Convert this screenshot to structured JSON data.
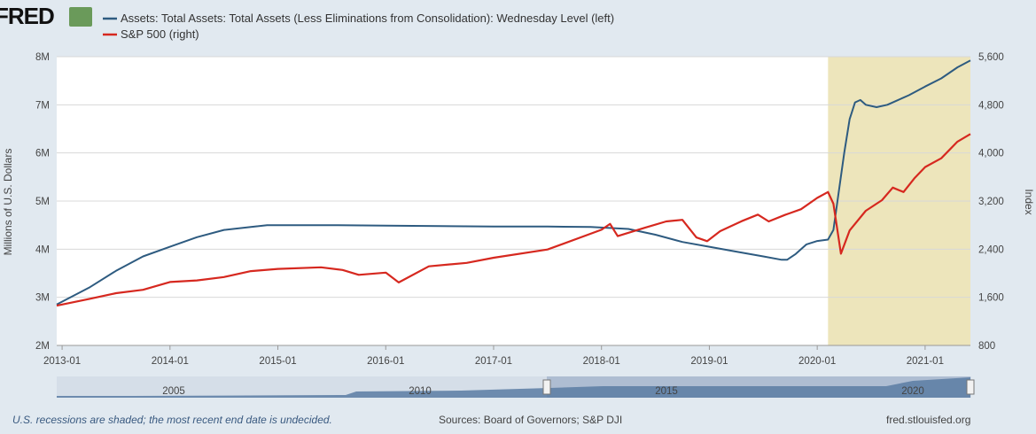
{
  "logo": {
    "text": "FRED"
  },
  "legend": [
    {
      "label": "Assets: Total Assets: Total Assets (Less Eliminations from Consolidation): Wednesday Level (left)",
      "color": "#2e5b80"
    },
    {
      "label": "S&P 500 (right)",
      "color": "#d6281f"
    }
  ],
  "footer": {
    "recession_note": "U.S. recessions are shaded; the most recent end date is undecided.",
    "sources": "Sources: Board of Governors; S&P DJI",
    "site": "fred.stlouisfed.org"
  },
  "navigator": {
    "tick_labels": [
      "2005",
      "2010",
      "2015",
      "2020"
    ]
  },
  "colors": {
    "plot_bg": "#ffffff",
    "page_bg": "#e1e9f0",
    "recession": "#ede5bb",
    "navigator_fill": "#5a7da3",
    "navigator_window": "#aebdd2"
  },
  "chart_data": {
    "type": "line",
    "title": "",
    "xlabel": "",
    "x_range": [
      2012.95,
      2021.42
    ],
    "x_tick_labels": [
      "2013-01",
      "2014-01",
      "2015-01",
      "2016-01",
      "2017-01",
      "2018-01",
      "2019-01",
      "2020-01",
      "2021-01"
    ],
    "x_tick_values": [
      2013.0,
      2014.0,
      2015.0,
      2016.0,
      2017.0,
      2018.0,
      2019.0,
      2020.0,
      2021.0
    ],
    "left_axis": {
      "label": "Millions of U.S. Dollars",
      "range": [
        2,
        8
      ],
      "ticks": [
        2,
        3,
        4,
        5,
        6,
        7,
        8
      ],
      "tick_labels": [
        "2M",
        "3M",
        "4M",
        "5M",
        "6M",
        "7M",
        "8M"
      ]
    },
    "right_axis": {
      "label": "Index",
      "range": [
        800,
        5600
      ],
      "ticks": [
        800,
        1600,
        2400,
        3200,
        4000,
        4800,
        5600
      ],
      "tick_labels": [
        "800",
        "1,600",
        "2,400",
        "3,200",
        "4,000",
        "4,800",
        "5,600"
      ]
    },
    "recessions": [
      {
        "start": 2020.1,
        "end": 2021.42
      }
    ],
    "series": [
      {
        "name": "Assets: Total Assets: Total Assets (Less Eliminations from Consolidation): Wednesday Level (left)",
        "axis": "left",
        "color": "#2e5b80",
        "x": [
          2012.95,
          2013.25,
          2013.5,
          2013.75,
          2014.0,
          2014.25,
          2014.5,
          2014.75,
          2014.9,
          2015.5,
          2016.0,
          2016.5,
          2017.0,
          2017.5,
          2017.9,
          2018.25,
          2018.5,
          2018.75,
          2019.0,
          2019.25,
          2019.5,
          2019.67,
          2019.72,
          2019.8,
          2019.9,
          2020.0,
          2020.1,
          2020.15,
          2020.2,
          2020.25,
          2020.3,
          2020.35,
          2020.4,
          2020.45,
          2020.55,
          2020.65,
          2020.75,
          2020.85,
          2021.0,
          2021.15,
          2021.3,
          2021.42
        ],
        "values": [
          2.85,
          3.2,
          3.55,
          3.85,
          4.05,
          4.25,
          4.4,
          4.46,
          4.5,
          4.5,
          4.49,
          4.48,
          4.47,
          4.47,
          4.46,
          4.42,
          4.3,
          4.15,
          4.05,
          3.95,
          3.85,
          3.78,
          3.78,
          3.9,
          4.1,
          4.17,
          4.2,
          4.4,
          5.2,
          6.0,
          6.7,
          7.05,
          7.1,
          7.0,
          6.95,
          7.0,
          7.1,
          7.2,
          7.38,
          7.55,
          7.78,
          7.92
        ]
      },
      {
        "name": "S&P 500 (right)",
        "axis": "right",
        "color": "#d6281f",
        "x": [
          2012.95,
          2013.25,
          2013.5,
          2013.75,
          2014.0,
          2014.25,
          2014.5,
          2014.75,
          2015.0,
          2015.4,
          2015.6,
          2015.75,
          2016.0,
          2016.12,
          2016.4,
          2016.75,
          2017.0,
          2017.5,
          2018.0,
          2018.08,
          2018.15,
          2018.4,
          2018.6,
          2018.75,
          2018.88,
          2018.98,
          2019.1,
          2019.3,
          2019.45,
          2019.55,
          2019.7,
          2019.85,
          2020.0,
          2020.1,
          2020.15,
          2020.22,
          2020.3,
          2020.45,
          2020.6,
          2020.7,
          2020.8,
          2020.9,
          2021.0,
          2021.15,
          2021.3,
          2021.42
        ],
        "values": [
          1426,
          1560,
          1680,
          1760,
          1830,
          1880,
          1960,
          2000,
          2060,
          2110,
          2090,
          1950,
          2010,
          1870,
          2080,
          2160,
          2270,
          2430,
          2700,
          2820,
          2640,
          2720,
          2850,
          2900,
          2630,
          2510,
          2700,
          2890,
          2940,
          2850,
          2980,
          3100,
          3230,
          3350,
          3180,
          2290,
          2700,
          3050,
          3250,
          3400,
          3350,
          3600,
          3730,
          3900,
          4200,
          4350
        ]
      }
    ]
  }
}
